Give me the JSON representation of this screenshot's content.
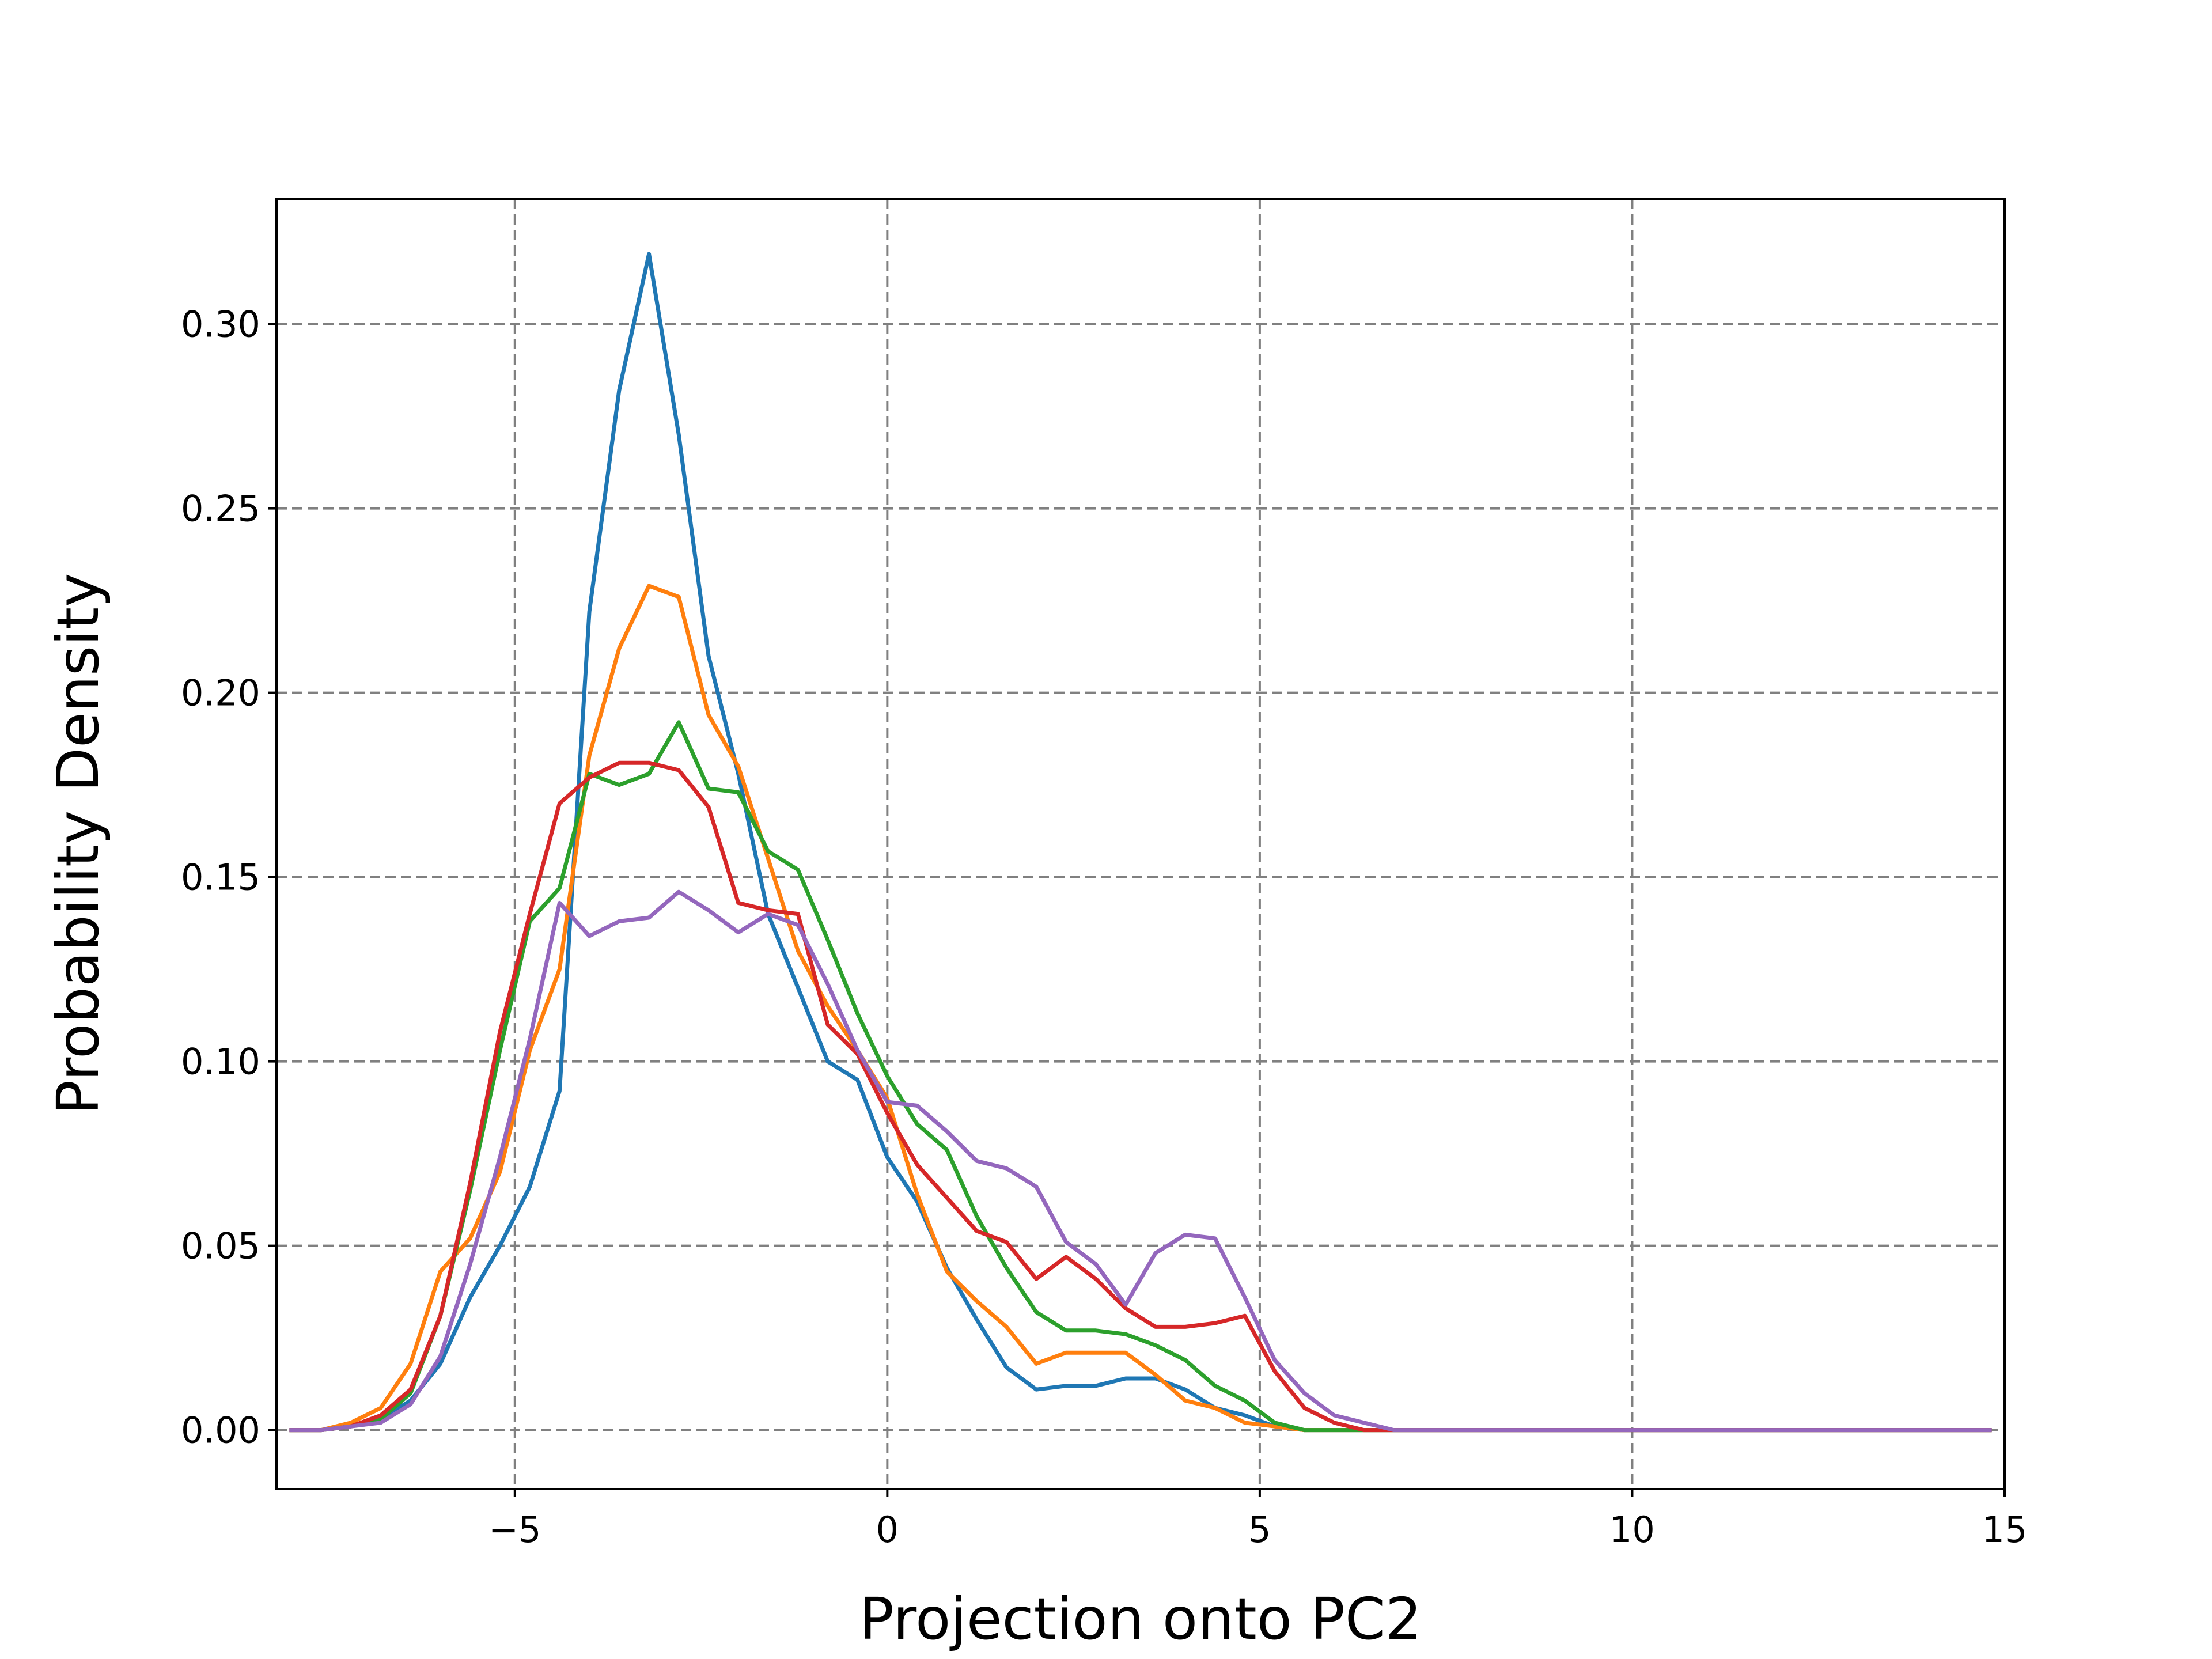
{
  "chart_data": {
    "type": "line",
    "title": "",
    "xlabel": "Projection onto PC2",
    "ylabel": "Probability Density",
    "xlim": [
      -8.2,
      15
    ],
    "ylim": [
      -0.016,
      0.334
    ],
    "xticks": [
      -5,
      0,
      5,
      10,
      15
    ],
    "xtick_labels": [
      "−5",
      "0",
      "5",
      "10",
      "15"
    ],
    "yticks": [
      0.0,
      0.05,
      0.1,
      0.15,
      0.2,
      0.25,
      0.3
    ],
    "ytick_labels": [
      "0.00",
      "0.05",
      "0.10",
      "0.15",
      "0.20",
      "0.25",
      "0.30"
    ],
    "grid": true,
    "legend": "none",
    "x": [
      -8.0,
      -7.6,
      -7.2,
      -6.8,
      -6.4,
      -6.0,
      -5.6,
      -5.2,
      -4.8,
      -4.4,
      -4.0,
      -3.6,
      -3.2,
      -2.8,
      -2.4,
      -2.0,
      -1.6,
      -1.2,
      -0.8,
      -0.4,
      0.0,
      0.4,
      0.8,
      1.2,
      1.6,
      2.0,
      2.4,
      2.8,
      3.2,
      3.6,
      4.0,
      4.4,
      4.8,
      5.2,
      5.6,
      6.0,
      6.4,
      6.8,
      7.2,
      7.6,
      8.0,
      8.4,
      8.8,
      9.2,
      9.6,
      10.0,
      10.4,
      10.8,
      11.2,
      11.6,
      12.0,
      12.4,
      12.8,
      13.2,
      13.6,
      14.0,
      14.4,
      14.8
    ],
    "series": [
      {
        "color": "#1f77b4",
        "values": [
          0.0,
          0.0,
          0.001,
          0.003,
          0.008,
          0.018,
          0.036,
          0.05,
          0.066,
          0.092,
          0.222,
          0.282,
          0.319,
          0.27,
          0.21,
          0.178,
          0.14,
          0.12,
          0.1,
          0.095,
          0.074,
          0.062,
          0.044,
          0.03,
          0.017,
          0.011,
          0.012,
          0.012,
          0.014,
          0.014,
          0.011,
          0.006,
          0.004,
          0.001,
          0.0,
          0.0,
          0.0,
          0.0,
          0.0,
          0.0,
          0.0,
          0.0,
          0.0,
          0.0,
          0.0,
          0.0,
          0.0,
          0.0,
          0.0,
          0.0,
          0.0,
          0.0,
          0.0,
          0.0,
          0.0,
          0.0,
          0.0,
          0.0
        ]
      },
      {
        "color": "#ff7f0e",
        "values": [
          0.0,
          0.0,
          0.002,
          0.006,
          0.018,
          0.043,
          0.052,
          0.07,
          0.103,
          0.125,
          0.183,
          0.212,
          0.229,
          0.226,
          0.194,
          0.18,
          0.155,
          0.13,
          0.115,
          0.103,
          0.09,
          0.064,
          0.043,
          0.035,
          0.028,
          0.018,
          0.021,
          0.021,
          0.021,
          0.015,
          0.008,
          0.006,
          0.002,
          0.001,
          0.0,
          0.0,
          0.0,
          0.0,
          0.0,
          0.0,
          0.0,
          0.0,
          0.0,
          0.0,
          0.0,
          0.0,
          0.0,
          0.0,
          0.0,
          0.0,
          0.0,
          0.0,
          0.0,
          0.0,
          0.0,
          0.0,
          0.0,
          0.0
        ]
      },
      {
        "color": "#2ca02c",
        "values": [
          0.0,
          0.0,
          0.001,
          0.003,
          0.01,
          0.031,
          0.065,
          0.103,
          0.138,
          0.147,
          0.178,
          0.175,
          0.178,
          0.192,
          0.174,
          0.173,
          0.157,
          0.152,
          0.133,
          0.113,
          0.096,
          0.083,
          0.076,
          0.058,
          0.044,
          0.032,
          0.027,
          0.027,
          0.026,
          0.023,
          0.019,
          0.012,
          0.008,
          0.002,
          0.0,
          0.0,
          0.0,
          0.0,
          0.0,
          0.0,
          0.0,
          0.0,
          0.0,
          0.0,
          0.0,
          0.0,
          0.0,
          0.0,
          0.0,
          0.0,
          0.0,
          0.0,
          0.0,
          0.0,
          0.0,
          0.0,
          0.0,
          0.0
        ]
      },
      {
        "color": "#d62728",
        "values": [
          0.0,
          0.0,
          0.001,
          0.004,
          0.011,
          0.031,
          0.067,
          0.108,
          0.14,
          0.17,
          0.177,
          0.181,
          0.181,
          0.179,
          0.169,
          0.143,
          0.141,
          0.14,
          0.11,
          0.102,
          0.086,
          0.072,
          0.063,
          0.054,
          0.051,
          0.041,
          0.047,
          0.041,
          0.033,
          0.028,
          0.028,
          0.029,
          0.031,
          0.016,
          0.006,
          0.002,
          0.0,
          0.0,
          0.0,
          0.0,
          0.0,
          0.0,
          0.0,
          0.0,
          0.0,
          0.0,
          0.0,
          0.0,
          0.0,
          0.0,
          0.0,
          0.0,
          0.0,
          0.0,
          0.0,
          0.0,
          0.0,
          0.0
        ]
      },
      {
        "color": "#9467bd",
        "values": [
          0.0,
          0.0,
          0.001,
          0.002,
          0.007,
          0.02,
          0.045,
          0.074,
          0.106,
          0.143,
          0.134,
          0.138,
          0.139,
          0.146,
          0.141,
          0.135,
          0.14,
          0.137,
          0.121,
          0.103,
          0.089,
          0.088,
          0.081,
          0.073,
          0.071,
          0.066,
          0.051,
          0.045,
          0.034,
          0.048,
          0.053,
          0.052,
          0.036,
          0.019,
          0.01,
          0.004,
          0.002,
          0.0,
          0.0,
          0.0,
          0.0,
          0.0,
          0.0,
          0.0,
          0.0,
          0.0,
          0.0,
          0.0,
          0.0,
          0.0,
          0.0,
          0.0,
          0.0,
          0.0,
          0.0,
          0.0,
          0.0,
          0.0
        ]
      }
    ]
  }
}
